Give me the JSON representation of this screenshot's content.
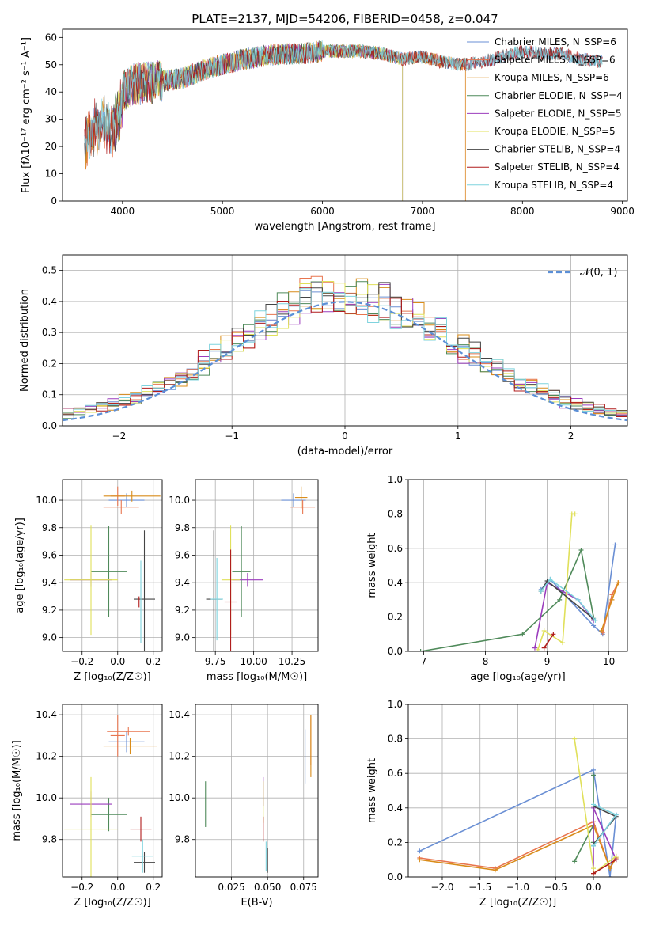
{
  "figure": {
    "title": "PLATE=2137, MJD=54206, FIBERID=0458, z=0.047"
  },
  "colors": {
    "chabrier_miles": "#6a8fd4",
    "salpeter_miles": "#e8754f",
    "kroupa_miles": "#d98c1a",
    "chabrier_elodie": "#4f8a5a",
    "salpeter_elodie": "#9b3dbd",
    "kroupa_elodie": "#e0e05a",
    "chabrier_stelib": "#444444",
    "salpeter_stelib": "#b01c1c",
    "kroupa_stelib": "#7fd3de",
    "normal": "#5b8fd6",
    "grid": "#b0b0b0"
  },
  "chart_data": [
    {
      "id": "spectrum",
      "type": "line",
      "xlabel": "wavelength [Angstrom, rest frame]",
      "ylabel": "Flux [fλ10⁻¹⁷ erg cm⁻² s⁻¹ A⁻¹]",
      "xlim": [
        3400,
        9050
      ],
      "ylim": [
        0,
        63
      ],
      "xticks": [
        4000,
        5000,
        6000,
        7000,
        8000,
        9000
      ],
      "yticks": [
        0,
        10,
        20,
        30,
        40,
        50,
        60
      ],
      "legend_position": "upper right",
      "series": [
        {
          "name": "Chabrier MILES, N_SSP=6",
          "key": "chabrier_miles",
          "x_range": [
            3620,
            8800
          ]
        },
        {
          "name": "Salpeter MILES, N_SSP=6",
          "key": "salpeter_miles",
          "x_range": [
            3620,
            7430
          ]
        },
        {
          "name": "Kroupa MILES, N_SSP=6",
          "key": "kroupa_miles",
          "x_range": [
            3620,
            7430
          ]
        },
        {
          "name": "Chabrier ELODIE, N_SSP=4",
          "key": "chabrier_elodie",
          "x_range": [
            3920,
            6800
          ]
        },
        {
          "name": "Salpeter ELODIE, N_SSP=5",
          "key": "salpeter_elodie",
          "x_range": [
            3920,
            6800
          ]
        },
        {
          "name": "Kroupa ELODIE, N_SSP=5",
          "key": "kroupa_elodie",
          "x_range": [
            3920,
            6800
          ]
        },
        {
          "name": "Chabrier STELIB, N_SSP=4",
          "key": "chabrier_stelib",
          "x_range": [
            3620,
            8800
          ]
        },
        {
          "name": "Salpeter STELIB, N_SSP=4",
          "key": "salpeter_stelib",
          "x_range": [
            3620,
            8800
          ]
        },
        {
          "name": "Kroupa STELIB, N_SSP=4",
          "key": "kroupa_stelib",
          "x_range": [
            3620,
            8800
          ]
        }
      ],
      "continuum": {
        "x": [
          3620,
          3700,
          3800,
          3900,
          4000,
          4100,
          4200,
          4400,
          4600,
          4800,
          5000,
          5200,
          5400,
          5600,
          5800,
          6000,
          6200,
          6400,
          6600,
          6800,
          7000,
          7200,
          7400,
          7600,
          7800,
          8000,
          8200,
          8400,
          8600,
          8800
        ],
        "y": [
          24,
          30,
          32,
          30,
          40,
          43,
          43,
          44,
          45,
          48,
          50,
          52,
          53,
          54,
          54,
          55,
          55,
          55,
          54,
          52,
          53,
          51,
          50,
          51,
          53,
          55,
          54,
          54,
          52,
          51
        ]
      }
    },
    {
      "id": "residuals",
      "type": "bar",
      "xlabel": "(data-model)/error",
      "ylabel": "Normed distribution",
      "xlim": [
        -2.5,
        2.5
      ],
      "ylim": [
        0,
        0.55
      ],
      "xticks": [
        -2,
        -1,
        0,
        1,
        2
      ],
      "yticks": [
        0.0,
        0.1,
        0.2,
        0.3,
        0.4,
        0.5
      ],
      "bin_width": 0.1,
      "legend": [
        {
          "name": "𝒩(0, 1)",
          "key": "normal",
          "style": "dashed"
        }
      ]
    },
    {
      "id": "age_vs_Z",
      "type": "scatter",
      "xlabel": "Z [log₁₀(Z/Z☉)]",
      "ylabel": "age  [log₁₀(age/yr)]",
      "xlim": [
        -0.31,
        0.25
      ],
      "ylim": [
        8.9,
        10.15
      ],
      "xticks": [
        -0.2,
        0.0,
        0.2
      ],
      "yticks": [
        9.0,
        9.2,
        9.4,
        9.6,
        9.8,
        10.0
      ],
      "points": [
        {
          "key": "chabrier_miles",
          "x": 0.05,
          "y": 10.0,
          "xerr": 0.1,
          "yerr": 0.05
        },
        {
          "key": "salpeter_miles",
          "x": 0.0,
          "y": 10.03,
          "xerr": 0.04,
          "yerr": 0.07
        },
        {
          "key": "kroupa_miles",
          "x": 0.08,
          "y": 10.03,
          "xerr": 0.16,
          "yerr": 0.04
        },
        {
          "key": "chabrier_elodie",
          "x": -0.05,
          "y": 9.48,
          "xerr": 0.1,
          "yerr": 0.33
        },
        {
          "key": "salpeter_elodie",
          "x": -0.15,
          "y": 9.42,
          "xerr": 0.12,
          "yerr": 0.05
        },
        {
          "key": "kroupa_elodie",
          "x": -0.15,
          "y": 9.42,
          "xerr": 0.15,
          "yerr": 0.4
        },
        {
          "key": "chabrier_stelib",
          "x": 0.15,
          "y": 9.28,
          "xerr": 0.06,
          "yerr": 0.5
        },
        {
          "key": "salpeter_stelib",
          "x": 0.12,
          "y": 9.26,
          "xerr": 0.04,
          "yerr": 0.04
        },
        {
          "key": "kroupa_stelib",
          "x": 0.13,
          "y": 9.26,
          "xerr": 0.06,
          "yerr": 0.3
        },
        {
          "key": "salpeter_miles",
          "x": 0.02,
          "y": 9.95,
          "xerr": 0.1,
          "yerr": 0.05
        }
      ]
    },
    {
      "id": "age_vs_mass",
      "type": "scatter",
      "xlabel": "mass [log₁₀(M/M☉)]",
      "ylabel": "",
      "xlim": [
        9.62,
        10.42
      ],
      "ylim": [
        8.9,
        10.15
      ],
      "xticks": [
        9.75,
        10.0,
        10.25
      ],
      "xticklabels": [
        "9.75",
        "10.00",
        "10.25"
      ],
      "yticks": [
        9.0,
        9.2,
        9.4,
        9.6,
        9.8,
        10.0
      ],
      "points": [
        {
          "key": "chabrier_miles",
          "x": 10.26,
          "y": 10.0,
          "xerr": 0.08,
          "yerr": 0.05
        },
        {
          "key": "salpeter_miles",
          "x": 10.32,
          "y": 9.95,
          "xerr": 0.08,
          "yerr": 0.05
        },
        {
          "key": "kroupa_miles",
          "x": 10.31,
          "y": 10.02,
          "xerr": 0.04,
          "yerr": 0.08
        },
        {
          "key": "chabrier_elodie",
          "x": 9.92,
          "y": 9.48,
          "xerr": 0.06,
          "yerr": 0.33
        },
        {
          "key": "salpeter_elodie",
          "x": 9.96,
          "y": 9.42,
          "xerr": 0.1,
          "yerr": 0.05
        },
        {
          "key": "kroupa_elodie",
          "x": 9.85,
          "y": 9.42,
          "xerr": 0.06,
          "yerr": 0.4
        },
        {
          "key": "chabrier_stelib",
          "x": 9.74,
          "y": 9.28,
          "xerr": 0.05,
          "yerr": 0.5
        },
        {
          "key": "salpeter_stelib",
          "x": 9.85,
          "y": 9.26,
          "xerr": 0.04,
          "yerr": 0.38
        },
        {
          "key": "kroupa_stelib",
          "x": 9.76,
          "y": 9.28,
          "xerr": 0.04,
          "yerr": 0.3
        }
      ]
    },
    {
      "id": "mass_weight_vs_age",
      "type": "line",
      "xlabel": "age  [log₁₀(age/yr)]",
      "ylabel": "mass weight",
      "xlim": [
        6.75,
        10.3
      ],
      "ylim": [
        0,
        1.0
      ],
      "xticks": [
        7,
        8,
        9,
        10
      ],
      "yticks": [
        0.0,
        0.2,
        0.4,
        0.6,
        0.8,
        1.0
      ],
      "series": [
        {
          "key": "chabrier_miles",
          "points": [
            [
              8.9,
              0.36
            ],
            [
              9.05,
              0.42
            ],
            [
              9.75,
              0.15
            ],
            [
              9.9,
              0.1
            ],
            [
              10.1,
              0.62
            ]
          ]
        },
        {
          "key": "salpeter_miles",
          "points": [
            [
              9.9,
              0.11
            ],
            [
              10.05,
              0.33
            ],
            [
              10.15,
              0.4
            ]
          ]
        },
        {
          "key": "kroupa_miles",
          "points": [
            [
              9.88,
              0.12
            ],
            [
              10.05,
              0.3
            ],
            [
              10.15,
              0.4
            ]
          ]
        },
        {
          "key": "chabrier_elodie",
          "points": [
            [
              6.95,
              0.0
            ],
            [
              8.6,
              0.1
            ],
            [
              9.2,
              0.3
            ],
            [
              9.55,
              0.59
            ],
            [
              9.75,
              0.2
            ]
          ]
        },
        {
          "key": "salpeter_elodie",
          "points": [
            [
              8.8,
              0.02
            ],
            [
              9.0,
              0.4
            ],
            [
              9.5,
              0.3
            ],
            [
              9.75,
              0.18
            ]
          ]
        },
        {
          "key": "kroupa_elodie",
          "points": [
            [
              8.85,
              0.01
            ],
            [
              8.95,
              0.12
            ],
            [
              9.25,
              0.05
            ],
            [
              9.4,
              0.8
            ],
            [
              9.45,
              0.8
            ]
          ]
        },
        {
          "key": "chabrier_stelib",
          "points": [
            [
              8.9,
              0.35
            ],
            [
              9.0,
              0.41
            ],
            [
              9.75,
              0.19
            ]
          ]
        },
        {
          "key": "salpeter_stelib",
          "points": [
            [
              8.95,
              0.02
            ],
            [
              9.1,
              0.1
            ]
          ]
        },
        {
          "key": "kroupa_stelib",
          "points": [
            [
              8.9,
              0.35
            ],
            [
              9.05,
              0.42
            ],
            [
              9.5,
              0.3
            ],
            [
              9.78,
              0.18
            ]
          ]
        }
      ]
    },
    {
      "id": "mass_vs_Z",
      "type": "scatter",
      "xlabel": "Z [log₁₀(Z/Z☉)]",
      "ylabel": "mass [log₁₀(M/M☉)]",
      "xlim": [
        -0.31,
        0.25
      ],
      "ylim": [
        9.62,
        10.45
      ],
      "xticks": [
        -0.2,
        0.0,
        0.2
      ],
      "yticks": [
        9.8,
        10.0,
        10.2,
        10.4
      ],
      "points": [
        {
          "key": "chabrier_miles",
          "x": 0.05,
          "y": 10.27,
          "xerr": 0.1,
          "yerr": 0.05
        },
        {
          "key": "salpeter_miles",
          "x": 0.0,
          "y": 10.3,
          "xerr": 0.04,
          "yerr": 0.1
        },
        {
          "key": "kroupa_miles",
          "x": 0.07,
          "y": 10.25,
          "xerr": 0.15,
          "yerr": 0.04
        },
        {
          "key": "chabrier_elodie",
          "x": -0.05,
          "y": 9.92,
          "xerr": 0.1,
          "yerr": 0.08
        },
        {
          "key": "salpeter_elodie",
          "x": -0.15,
          "y": 9.97,
          "xerr": 0.12,
          "yerr": 0.06
        },
        {
          "key": "kroupa_elodie",
          "x": -0.15,
          "y": 9.85,
          "xerr": 0.15,
          "yerr": 0.25
        },
        {
          "key": "chabrier_stelib",
          "x": 0.15,
          "y": 9.69,
          "xerr": 0.06,
          "yerr": 0.05
        },
        {
          "key": "salpeter_stelib",
          "x": 0.13,
          "y": 9.85,
          "xerr": 0.06,
          "yerr": 0.06
        },
        {
          "key": "kroupa_stelib",
          "x": 0.14,
          "y": 9.72,
          "xerr": 0.06,
          "yerr": 0.08
        },
        {
          "key": "salpeter_miles",
          "x": 0.06,
          "y": 10.32,
          "xerr": 0.12,
          "yerr": 0.02
        }
      ]
    },
    {
      "id": "mass_vs_ebv",
      "type": "scatter",
      "xlabel": "E(B-V)",
      "ylabel": "",
      "xlim": [
        0.0,
        0.085
      ],
      "ylim": [
        9.62,
        10.45
      ],
      "xticks": [
        0.025,
        0.05,
        0.075
      ],
      "xticklabels": [
        "0.025",
        "0.050",
        "0.075"
      ],
      "yticks": [
        9.8,
        10.0,
        10.2,
        10.4
      ],
      "points": [
        {
          "key": "chabrier_miles",
          "x": 0.076,
          "y": 10.2,
          "xerr": 0,
          "yerr": 0.13
        },
        {
          "key": "salpeter_miles",
          "x": 0.08,
          "y": 10.28,
          "xerr": 0,
          "yerr": 0.12
        },
        {
          "key": "kroupa_miles",
          "x": 0.08,
          "y": 10.25,
          "xerr": 0,
          "yerr": 0.15
        },
        {
          "key": "chabrier_elodie",
          "x": 0.007,
          "y": 9.97,
          "xerr": 0,
          "yerr": 0.11
        },
        {
          "key": "salpeter_elodie",
          "x": 0.047,
          "y": 10.03,
          "xerr": 0,
          "yerr": 0.07
        },
        {
          "key": "kroupa_elodie",
          "x": 0.047,
          "y": 9.98,
          "xerr": 0,
          "yerr": 0.1
        },
        {
          "key": "chabrier_stelib",
          "x": 0.05,
          "y": 9.7,
          "xerr": 0,
          "yerr": 0.06
        },
        {
          "key": "salpeter_stelib",
          "x": 0.047,
          "y": 9.85,
          "xerr": 0,
          "yerr": 0.06
        },
        {
          "key": "kroupa_stelib",
          "x": 0.049,
          "y": 9.72,
          "xerr": 0,
          "yerr": 0.07
        }
      ]
    },
    {
      "id": "mass_weight_vs_Z",
      "type": "line",
      "xlabel": "Z [log₁₀(Z/Z☉)]",
      "ylabel": "mass weight",
      "xlim": [
        -2.45,
        0.45
      ],
      "ylim": [
        0,
        1.0
      ],
      "xticks": [
        -2.0,
        -1.5,
        -1.0,
        -0.5,
        0.0
      ],
      "xticklabels": [
        "−2.0",
        "−1.5",
        "−1.0",
        "−0.5",
        "0.0"
      ],
      "yticks": [
        0.0,
        0.2,
        0.4,
        0.6,
        0.8,
        1.0
      ],
      "series": [
        {
          "key": "chabrier_miles",
          "points": [
            [
              -2.3,
              0.15
            ],
            [
              0.0,
              0.62
            ],
            [
              0.22,
              0.0
            ],
            [
              0.3,
              0.36
            ],
            [
              0.0,
              0.18
            ]
          ]
        },
        {
          "key": "salpeter_miles",
          "points": [
            [
              -2.3,
              0.11
            ],
            [
              -1.3,
              0.05
            ],
            [
              0.0,
              0.32
            ],
            [
              0.22,
              0.05
            ],
            [
              0.3,
              0.12
            ]
          ]
        },
        {
          "key": "kroupa_miles",
          "points": [
            [
              -2.3,
              0.1
            ],
            [
              -1.3,
              0.04
            ],
            [
              0.0,
              0.3
            ],
            [
              0.22,
              0.05
            ],
            [
              0.3,
              0.11
            ]
          ]
        },
        {
          "key": "chabrier_elodie",
          "points": [
            [
              -0.25,
              0.09
            ],
            [
              0.0,
              0.3
            ],
            [
              0.0,
              0.59
            ],
            [
              0.0,
              0.2
            ]
          ]
        },
        {
          "key": "salpeter_elodie",
          "points": [
            [
              0.0,
              0.02
            ],
            [
              0.0,
              0.4
            ],
            [
              0.3,
              0.1
            ]
          ]
        },
        {
          "key": "kroupa_elodie",
          "points": [
            [
              -0.25,
              0.8
            ],
            [
              0.0,
              0.05
            ],
            [
              0.0,
              0.02
            ],
            [
              0.3,
              0.12
            ]
          ]
        },
        {
          "key": "chabrier_stelib",
          "points": [
            [
              0.0,
              0.41
            ],
            [
              0.3,
              0.35
            ],
            [
              0.0,
              0.19
            ]
          ]
        },
        {
          "key": "salpeter_stelib",
          "points": [
            [
              0.0,
              0.02
            ],
            [
              0.3,
              0.1
            ]
          ]
        },
        {
          "key": "kroupa_stelib",
          "points": [
            [
              0.0,
              0.42
            ],
            [
              0.3,
              0.36
            ],
            [
              0.0,
              0.18
            ]
          ]
        }
      ]
    }
  ]
}
